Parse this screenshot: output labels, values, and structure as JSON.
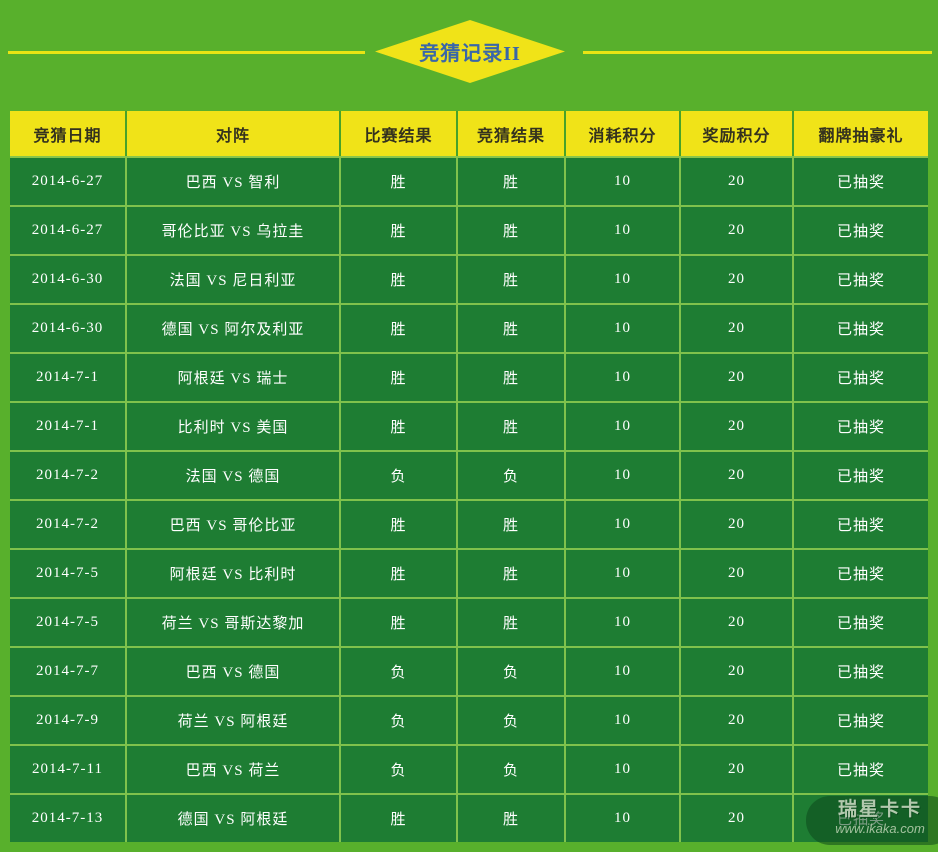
{
  "title": {
    "text": "竞猜记录II"
  },
  "colors": {
    "page_background": "#58b02c",
    "header_yellow": "#f0e318",
    "cell_green": "#1e7d33",
    "grid_light_green": "#7fc24c",
    "title_blue": "#3a67a8",
    "cell_text": "#ffffff",
    "header_text": "#34321e"
  },
  "table": {
    "headers": [
      "竞猜日期",
      "对阵",
      "比赛结果",
      "竞猜结果",
      "消耗积分",
      "奖励积分",
      "翻牌抽豪礼"
    ],
    "rows": [
      [
        "2014-6-27",
        "巴西 VS 智利",
        "胜",
        "胜",
        "10",
        "20",
        "已抽奖"
      ],
      [
        "2014-6-27",
        "哥伦比亚 VS 乌拉圭",
        "胜",
        "胜",
        "10",
        "20",
        "已抽奖"
      ],
      [
        "2014-6-30",
        "法国 VS 尼日利亚",
        "胜",
        "胜",
        "10",
        "20",
        "已抽奖"
      ],
      [
        "2014-6-30",
        "德国 VS 阿尔及利亚",
        "胜",
        "胜",
        "10",
        "20",
        "已抽奖"
      ],
      [
        "2014-7-1",
        "阿根廷 VS 瑞士",
        "胜",
        "胜",
        "10",
        "20",
        "已抽奖"
      ],
      [
        "2014-7-1",
        "比利时 VS 美国",
        "胜",
        "胜",
        "10",
        "20",
        "已抽奖"
      ],
      [
        "2014-7-2",
        "法国 VS 德国",
        "负",
        "负",
        "10",
        "20",
        "已抽奖"
      ],
      [
        "2014-7-2",
        "巴西 VS 哥伦比亚",
        "胜",
        "胜",
        "10",
        "20",
        "已抽奖"
      ],
      [
        "2014-7-5",
        "阿根廷 VS 比利时",
        "胜",
        "胜",
        "10",
        "20",
        "已抽奖"
      ],
      [
        "2014-7-5",
        "荷兰 VS 哥斯达黎加",
        "胜",
        "胜",
        "10",
        "20",
        "已抽奖"
      ],
      [
        "2014-7-7",
        "巴西 VS 德国",
        "负",
        "负",
        "10",
        "20",
        "已抽奖"
      ],
      [
        "2014-7-9",
        "荷兰 VS 阿根廷",
        "负",
        "负",
        "10",
        "20",
        "已抽奖"
      ],
      [
        "2014-7-11",
        "巴西 VS 荷兰",
        "负",
        "负",
        "10",
        "20",
        "已抽奖"
      ],
      [
        "2014-7-13",
        "德国 VS 阿根廷",
        "胜",
        "胜",
        "10",
        "20",
        "已抽奖"
      ]
    ]
  },
  "watermark": {
    "brand": "瑞星卡卡",
    "url": "www.ikaka.com"
  }
}
